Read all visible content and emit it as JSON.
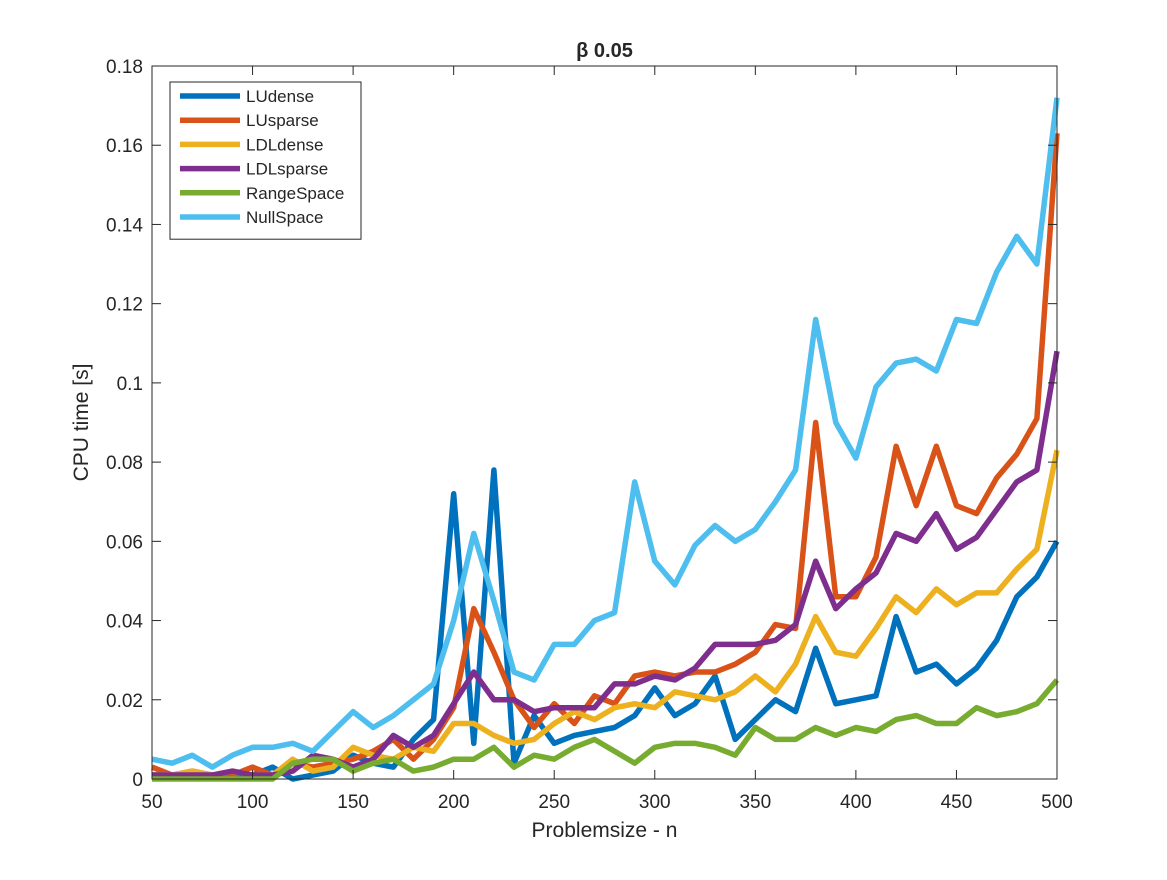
{
  "chart_data": {
    "type": "line",
    "title": "β 0.05",
    "xlabel": "Problemsize - n",
    "ylabel": "CPU time [s]",
    "xlim": [
      50,
      500
    ],
    "ylim": [
      0,
      0.18
    ],
    "xticks": [
      50,
      100,
      150,
      200,
      250,
      300,
      350,
      400,
      450,
      500
    ],
    "yticks": [
      0,
      0.02,
      0.04,
      0.06,
      0.08,
      0.1,
      0.12,
      0.14,
      0.16,
      0.18
    ],
    "xtick_labels": [
      "50",
      "100",
      "150",
      "200",
      "250",
      "300",
      "350",
      "400",
      "450",
      "500"
    ],
    "ytick_labels": [
      "0",
      "0.02",
      "0.04",
      "0.06",
      "0.08",
      "0.1",
      "0.12",
      "0.14",
      "0.16",
      "0.18"
    ],
    "grid": false,
    "legend_position": "top-left",
    "x": [
      50,
      60,
      70,
      80,
      90,
      100,
      110,
      120,
      130,
      140,
      150,
      160,
      170,
      180,
      190,
      200,
      210,
      220,
      230,
      240,
      250,
      260,
      270,
      280,
      290,
      300,
      310,
      320,
      330,
      340,
      350,
      360,
      370,
      380,
      390,
      400,
      410,
      420,
      430,
      440,
      450,
      460,
      470,
      480,
      490,
      500
    ],
    "series": [
      {
        "name": "LUdense",
        "color": "#0072BD",
        "values": [
          0.001,
          0.001,
          0.001,
          0.001,
          0.001,
          0.001,
          0.003,
          0.0,
          0.001,
          0.002,
          0.006,
          0.004,
          0.003,
          0.01,
          0.015,
          0.072,
          0.009,
          0.078,
          0.004,
          0.016,
          0.009,
          0.011,
          0.012,
          0.013,
          0.016,
          0.023,
          0.016,
          0.019,
          0.026,
          0.01,
          0.015,
          0.02,
          0.017,
          0.033,
          0.019,
          0.02,
          0.021,
          0.041,
          0.027,
          0.029,
          0.024,
          0.028,
          0.035,
          0.046,
          0.051,
          0.06
        ]
      },
      {
        "name": "LUsparse",
        "color": "#D95319",
        "values": [
          0.003,
          0.001,
          0.002,
          0.001,
          0.001,
          0.003,
          0.001,
          0.004,
          0.003,
          0.004,
          0.005,
          0.007,
          0.01,
          0.005,
          0.01,
          0.018,
          0.043,
          0.032,
          0.02,
          0.013,
          0.019,
          0.014,
          0.021,
          0.019,
          0.026,
          0.027,
          0.026,
          0.027,
          0.027,
          0.029,
          0.032,
          0.039,
          0.038,
          0.09,
          0.046,
          0.046,
          0.056,
          0.084,
          0.069,
          0.084,
          0.069,
          0.067,
          0.076,
          0.082,
          0.091,
          0.163
        ]
      },
      {
        "name": "LDLdense",
        "color": "#EDB120",
        "values": [
          0.001,
          0.001,
          0.002,
          0.001,
          0.002,
          0.001,
          0.001,
          0.005,
          0.002,
          0.003,
          0.008,
          0.006,
          0.005,
          0.008,
          0.007,
          0.014,
          0.014,
          0.011,
          0.009,
          0.01,
          0.014,
          0.017,
          0.015,
          0.018,
          0.019,
          0.018,
          0.022,
          0.021,
          0.02,
          0.022,
          0.026,
          0.022,
          0.029,
          0.041,
          0.032,
          0.031,
          0.038,
          0.046,
          0.042,
          0.048,
          0.044,
          0.047,
          0.047,
          0.053,
          0.058,
          0.083
        ]
      },
      {
        "name": "LDLsparse",
        "color": "#7E2F8E",
        "values": [
          0.001,
          0.001,
          0.001,
          0.001,
          0.002,
          0.001,
          0.001,
          0.002,
          0.006,
          0.005,
          0.003,
          0.005,
          0.011,
          0.008,
          0.011,
          0.019,
          0.027,
          0.02,
          0.02,
          0.017,
          0.018,
          0.018,
          0.018,
          0.024,
          0.024,
          0.026,
          0.025,
          0.028,
          0.034,
          0.034,
          0.034,
          0.035,
          0.039,
          0.055,
          0.043,
          0.048,
          0.052,
          0.062,
          0.06,
          0.067,
          0.058,
          0.061,
          0.068,
          0.075,
          0.078,
          0.108
        ]
      },
      {
        "name": "RangeSpace",
        "color": "#77AC30",
        "values": [
          0.0,
          0.0,
          0.0,
          0.0,
          0.0,
          0.0,
          0.0,
          0.004,
          0.005,
          0.005,
          0.002,
          0.004,
          0.005,
          0.002,
          0.003,
          0.005,
          0.005,
          0.008,
          0.003,
          0.006,
          0.005,
          0.008,
          0.01,
          0.007,
          0.004,
          0.008,
          0.009,
          0.009,
          0.008,
          0.006,
          0.013,
          0.01,
          0.01,
          0.013,
          0.011,
          0.013,
          0.012,
          0.015,
          0.016,
          0.014,
          0.014,
          0.018,
          0.016,
          0.017,
          0.019,
          0.025
        ]
      },
      {
        "name": "NullSpace",
        "color": "#4DBEEE",
        "values": [
          0.005,
          0.004,
          0.006,
          0.003,
          0.006,
          0.008,
          0.008,
          0.009,
          0.007,
          0.012,
          0.017,
          0.013,
          0.016,
          0.02,
          0.024,
          0.04,
          0.062,
          0.045,
          0.027,
          0.025,
          0.034,
          0.034,
          0.04,
          0.042,
          0.075,
          0.055,
          0.049,
          0.059,
          0.064,
          0.06,
          0.063,
          0.07,
          0.078,
          0.116,
          0.09,
          0.081,
          0.099,
          0.105,
          0.106,
          0.103,
          0.116,
          0.115,
          0.128,
          0.137,
          0.13,
          0.172
        ]
      }
    ]
  }
}
